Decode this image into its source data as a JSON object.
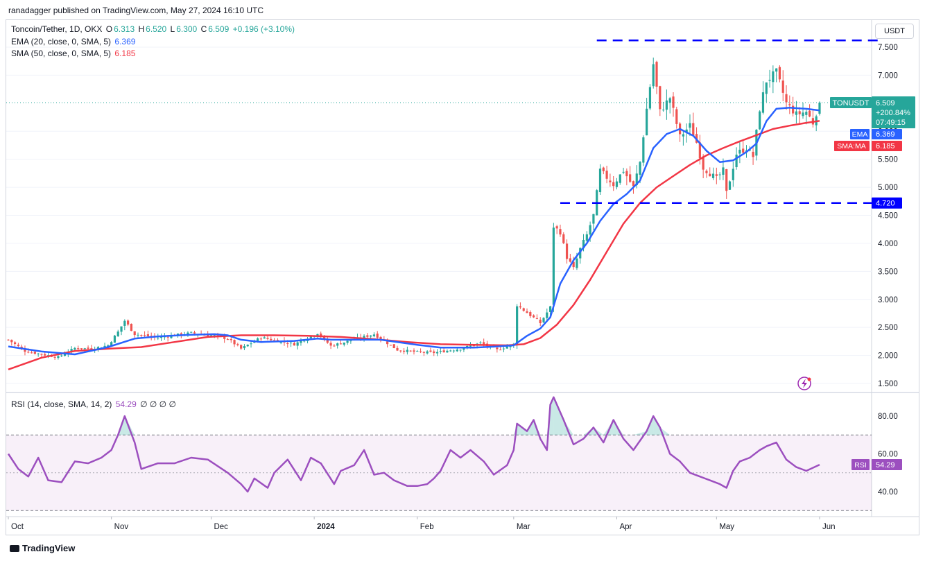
{
  "header": {
    "published": "ranadagger published on TradingView.com, May 27, 2024 16:10 UTC"
  },
  "legend": {
    "symbol": "Toncoin/Tether, 1D, OKX",
    "o_label": "O",
    "o_value": "6.313",
    "h_label": "H",
    "h_value": "6.520",
    "l_label": "L",
    "l_value": "6.300",
    "c_label": "C",
    "c_value": "6.509",
    "change": "+0.196 (+3.10%)",
    "ema_label": "EMA (20, close, 0, SMA, 5)",
    "ema_value": "6.369",
    "sma_label": "SMA (50, close, 0, SMA, 5)",
    "sma_value": "6.185",
    "rsi_label": "RSI (14, close, SMA, 14, 2)",
    "rsi_value": "54.29",
    "rsi_extra": "∅ ∅ ∅ ∅"
  },
  "currency": "USDT",
  "badges": {
    "ticker": "TONUSDT",
    "price": "6.509",
    "pct": "+200.84%",
    "countdown": "07:49:15",
    "ema_tag": "EMA",
    "ema_val": "6.369",
    "sma_tag": "SMA:MA",
    "sma_val": "6.185",
    "support": "4.720",
    "rsi_tag": "RSI",
    "rsi_val": "54.29"
  },
  "footer": {
    "brand": "TradingView"
  },
  "colors": {
    "up": "#26a69a",
    "down": "#ef5350",
    "ema": "#2962ff",
    "sma": "#f23645",
    "rsi": "#9c4fbf",
    "level": "#0000ff"
  },
  "chart_data": [
    {
      "type": "candlestick",
      "pair": "TONUSDT",
      "yticks": [
        "1.500",
        "2.000",
        "2.500",
        "3.000",
        "3.500",
        "4.000",
        "4.500",
        "5.000",
        "5.500",
        "6.000",
        "7.000",
        "7.500"
      ],
      "ylim": [
        1.45,
        7.75
      ],
      "xticks": [
        {
          "label": "Oct",
          "bold": false,
          "day": 0
        },
        {
          "label": "Nov",
          "bold": false,
          "day": 31
        },
        {
          "label": "Dec",
          "bold": false,
          "day": 61
        },
        {
          "label": "2024",
          "bold": true,
          "day": 92
        },
        {
          "label": "Feb",
          "bold": false,
          "day": 123
        },
        {
          "label": "Mar",
          "bold": false,
          "day": 152
        },
        {
          "label": "Apr",
          "bold": false,
          "day": 183
        },
        {
          "label": "May",
          "bold": false,
          "day": 213
        },
        {
          "label": "Jun",
          "bold": false,
          "day": 244
        }
      ],
      "levels": [
        {
          "value": 7.62,
          "from_day": 177,
          "to_day": 262,
          "label": ""
        },
        {
          "value": 4.72,
          "from_day": 166,
          "to_day": 262,
          "label": "4.720"
        }
      ],
      "close_anchors": [
        [
          0,
          2.28
        ],
        [
          5,
          2.08
        ],
        [
          10,
          2.02
        ],
        [
          15,
          1.97
        ],
        [
          20,
          2.13
        ],
        [
          25,
          2.12
        ],
        [
          30,
          2.18
        ],
        [
          33,
          2.42
        ],
        [
          35,
          2.62
        ],
        [
          38,
          2.38
        ],
        [
          45,
          2.32
        ],
        [
          55,
          2.4
        ],
        [
          62,
          2.35
        ],
        [
          66,
          2.3
        ],
        [
          70,
          2.12
        ],
        [
          76,
          2.32
        ],
        [
          86,
          2.2
        ],
        [
          93,
          2.4
        ],
        [
          97,
          2.17
        ],
        [
          105,
          2.3
        ],
        [
          110,
          2.38
        ],
        [
          117,
          2.1
        ],
        [
          123,
          2.06
        ],
        [
          128,
          2.05
        ],
        [
          136,
          2.12
        ],
        [
          142,
          2.22
        ],
        [
          147,
          2.1
        ],
        [
          152,
          2.2
        ],
        [
          153,
          2.9
        ],
        [
          160,
          2.58
        ],
        [
          163,
          2.86
        ],
        [
          164,
          4.3
        ],
        [
          166,
          4.2
        ],
        [
          168,
          3.75
        ],
        [
          170,
          3.55
        ],
        [
          172,
          3.9
        ],
        [
          174,
          4.15
        ],
        [
          176,
          4.5
        ],
        [
          178,
          5.3
        ],
        [
          182,
          5.05
        ],
        [
          185,
          5.3
        ],
        [
          188,
          5.0
        ],
        [
          190,
          5.45
        ],
        [
          192,
          6.4
        ],
        [
          194,
          7.2
        ],
        [
          196,
          6.35
        ],
        [
          199,
          6.6
        ],
        [
          202,
          5.9
        ],
        [
          205,
          6.1
        ],
        [
          207,
          5.8
        ],
        [
          209,
          5.35
        ],
        [
          213,
          5.15
        ],
        [
          215,
          5.3
        ],
        [
          216,
          4.9
        ],
        [
          219,
          5.6
        ],
        [
          222,
          5.7
        ],
        [
          224,
          5.55
        ],
        [
          226,
          6.4
        ],
        [
          228,
          6.9
        ],
        [
          231,
          7.05
        ],
        [
          234,
          6.5
        ],
        [
          237,
          6.3
        ],
        [
          240,
          6.35
        ],
        [
          242,
          6.15
        ],
        [
          244,
          6.51
        ]
      ],
      "ema": [
        [
          0,
          2.16
        ],
        [
          10,
          2.07
        ],
        [
          20,
          2.02
        ],
        [
          30,
          2.15
        ],
        [
          38,
          2.3
        ],
        [
          45,
          2.34
        ],
        [
          55,
          2.37
        ],
        [
          62,
          2.38
        ],
        [
          66,
          2.36
        ],
        [
          70,
          2.28
        ],
        [
          76,
          2.24
        ],
        [
          86,
          2.26
        ],
        [
          93,
          2.3
        ],
        [
          97,
          2.28
        ],
        [
          105,
          2.28
        ],
        [
          112,
          2.28
        ],
        [
          117,
          2.24
        ],
        [
          123,
          2.19
        ],
        [
          130,
          2.14
        ],
        [
          140,
          2.14
        ],
        [
          147,
          2.16
        ],
        [
          152,
          2.18
        ],
        [
          156,
          2.35
        ],
        [
          160,
          2.48
        ],
        [
          163,
          2.68
        ],
        [
          166,
          3.28
        ],
        [
          170,
          3.7
        ],
        [
          174,
          4.0
        ],
        [
          178,
          4.4
        ],
        [
          182,
          4.7
        ],
        [
          186,
          4.88
        ],
        [
          190,
          5.12
        ],
        [
          194,
          5.7
        ],
        [
          198,
          5.95
        ],
        [
          202,
          6.04
        ],
        [
          206,
          5.92
        ],
        [
          210,
          5.65
        ],
        [
          214,
          5.45
        ],
        [
          218,
          5.48
        ],
        [
          222,
          5.63
        ],
        [
          225,
          5.78
        ],
        [
          228,
          6.18
        ],
        [
          231,
          6.4
        ],
        [
          235,
          6.42
        ],
        [
          240,
          6.4
        ],
        [
          244,
          6.37
        ]
      ],
      "sma": [
        [
          0,
          1.75
        ],
        [
          10,
          1.96
        ],
        [
          20,
          2.08
        ],
        [
          30,
          2.12
        ],
        [
          40,
          2.15
        ],
        [
          50,
          2.24
        ],
        [
          60,
          2.33
        ],
        [
          70,
          2.36
        ],
        [
          80,
          2.36
        ],
        [
          90,
          2.35
        ],
        [
          100,
          2.33
        ],
        [
          110,
          2.29
        ],
        [
          120,
          2.24
        ],
        [
          130,
          2.2
        ],
        [
          140,
          2.19
        ],
        [
          150,
          2.18
        ],
        [
          155,
          2.2
        ],
        [
          160,
          2.31
        ],
        [
          165,
          2.55
        ],
        [
          170,
          2.9
        ],
        [
          175,
          3.35
        ],
        [
          180,
          3.85
        ],
        [
          185,
          4.35
        ],
        [
          190,
          4.72
        ],
        [
          195,
          5.0
        ],
        [
          200,
          5.2
        ],
        [
          205,
          5.4
        ],
        [
          210,
          5.57
        ],
        [
          215,
          5.7
        ],
        [
          220,
          5.82
        ],
        [
          225,
          5.93
        ],
        [
          230,
          6.04
        ],
        [
          235,
          6.1
        ],
        [
          240,
          6.15
        ],
        [
          244,
          6.185
        ]
      ]
    },
    {
      "type": "line",
      "name": "RSI",
      "yticks": [
        "40.00",
        "60.00",
        "80.00"
      ],
      "ylim": [
        25,
        92
      ],
      "bands": {
        "upper": 70,
        "lower": 30,
        "mid": 50
      },
      "points": [
        [
          0,
          60
        ],
        [
          3,
          52
        ],
        [
          6,
          48
        ],
        [
          9,
          58
        ],
        [
          12,
          46
        ],
        [
          16,
          45
        ],
        [
          20,
          56
        ],
        [
          24,
          55
        ],
        [
          28,
          58
        ],
        [
          31,
          62
        ],
        [
          33,
          70
        ],
        [
          35,
          80
        ],
        [
          38,
          66
        ],
        [
          40,
          52
        ],
        [
          45,
          55
        ],
        [
          50,
          55
        ],
        [
          55,
          58
        ],
        [
          60,
          57
        ],
        [
          66,
          50
        ],
        [
          70,
          44
        ],
        [
          72,
          40
        ],
        [
          74,
          47
        ],
        [
          78,
          42
        ],
        [
          80,
          50
        ],
        [
          84,
          57
        ],
        [
          88,
          46
        ],
        [
          91,
          58
        ],
        [
          94,
          55
        ],
        [
          98,
          44
        ],
        [
          100,
          51
        ],
        [
          104,
          54
        ],
        [
          107,
          62
        ],
        [
          110,
          49
        ],
        [
          113,
          50
        ],
        [
          116,
          46
        ],
        [
          120,
          43
        ],
        [
          123,
          43
        ],
        [
          126,
          44
        ],
        [
          128,
          47
        ],
        [
          130,
          51
        ],
        [
          133,
          62
        ],
        [
          136,
          58
        ],
        [
          139,
          62
        ],
        [
          143,
          56
        ],
        [
          146,
          49
        ],
        [
          150,
          54
        ],
        [
          152,
          62
        ],
        [
          153,
          76
        ],
        [
          156,
          72
        ],
        [
          158,
          78
        ],
        [
          160,
          68
        ],
        [
          162,
          62
        ],
        [
          163,
          86
        ],
        [
          164,
          90
        ],
        [
          167,
          78
        ],
        [
          170,
          65
        ],
        [
          173,
          68
        ],
        [
          176,
          74
        ],
        [
          179,
          66
        ],
        [
          182,
          78
        ],
        [
          185,
          68
        ],
        [
          188,
          62
        ],
        [
          192,
          72
        ],
        [
          194,
          80
        ],
        [
          196,
          74
        ],
        [
          199,
          60
        ],
        [
          202,
          56
        ],
        [
          205,
          50
        ],
        [
          208,
          48
        ],
        [
          211,
          46
        ],
        [
          214,
          44
        ],
        [
          216,
          42
        ],
        [
          218,
          51
        ],
        [
          220,
          56
        ],
        [
          223,
          58
        ],
        [
          226,
          62
        ],
        [
          228,
          64
        ],
        [
          231,
          66
        ],
        [
          234,
          57
        ],
        [
          237,
          53
        ],
        [
          240,
          51
        ],
        [
          244,
          54.29
        ]
      ]
    }
  ]
}
